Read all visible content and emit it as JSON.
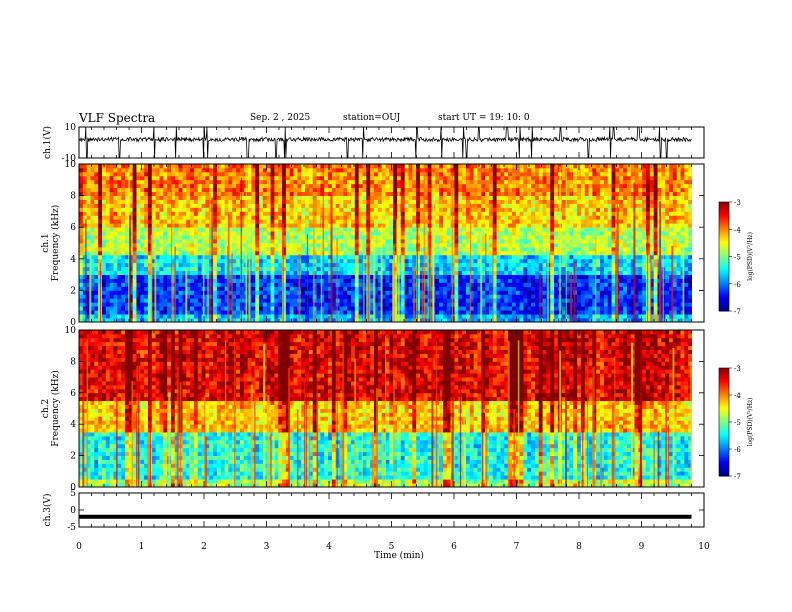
{
  "header": {
    "title": "VLF Spectra",
    "date": "Sep. 2 , 2025",
    "station": "station=OUJ",
    "start": "start UT =  19: 10: 0"
  },
  "chart_data": [
    {
      "type": "line",
      "panel": "ch1-waveform",
      "ylabel": "ch.1(V)",
      "yticks": [
        "10",
        "-10"
      ],
      "ylim": [
        -10,
        10
      ],
      "xlim": [
        0,
        10
      ],
      "description": "noisy waveform centered near 2 V with spikes",
      "baseline": 2,
      "spike_times": [
        0.12,
        0.65,
        1.2,
        1.55,
        2.0,
        2.05,
        2.7,
        3.15,
        3.3,
        4.3,
        4.55,
        5.4,
        5.8,
        6.15,
        6.2,
        6.4,
        6.85,
        7.05,
        7.25,
        7.7,
        8.15,
        8.5,
        8.55,
        8.95,
        9.3,
        9.4
      ]
    },
    {
      "type": "heatmap",
      "panel": "ch1-spectrogram",
      "ylabel_line1": "ch.1",
      "ylabel_line2": "Frequency (kHz)",
      "yticks": [
        "0",
        "2",
        "4",
        "6",
        "8",
        "10"
      ],
      "ylim": [
        0,
        10
      ],
      "xlim": [
        0,
        10
      ],
      "colorbar_label": "log(PSD)(V²/Hz)",
      "colorbar_ticks": [
        "-3",
        "-4",
        "-5",
        "-6",
        "-7"
      ],
      "colorbar_range": [
        -7,
        -3
      ],
      "level_by_band_kHz": [
        [
          0,
          0.5,
          -5.8
        ],
        [
          0.5,
          3.0,
          -6.3
        ],
        [
          3.0,
          4.2,
          -5.6
        ],
        [
          4.2,
          6.0,
          -4.8
        ],
        [
          6.0,
          8.0,
          -4.3
        ],
        [
          8.0,
          10.0,
          -4.0
        ]
      ]
    },
    {
      "type": "heatmap",
      "panel": "ch2-spectrogram",
      "ylabel_line1": "ch.2",
      "ylabel_line2": "Frequency (kHz)",
      "yticks": [
        "0",
        "2",
        "4",
        "6",
        "8",
        "10"
      ],
      "ylim": [
        0,
        10
      ],
      "xlim": [
        0,
        10
      ],
      "colorbar_label": "log(PSD)(V²/Hz)",
      "colorbar_ticks": [
        "-3",
        "-4",
        "-5",
        "-6",
        "-7"
      ],
      "colorbar_range": [
        -7,
        -3
      ],
      "level_by_band_kHz": [
        [
          0,
          0.5,
          -4.8
        ],
        [
          0.5,
          3.5,
          -5.4
        ],
        [
          3.5,
          5.5,
          -4.3
        ],
        [
          5.5,
          10.0,
          -3.4
        ]
      ]
    },
    {
      "type": "line",
      "panel": "ch3-waveform",
      "ylabel": "ch.3(V)",
      "yticks": [
        "5",
        "0",
        "-5"
      ],
      "ylim": [
        -5,
        5
      ],
      "xlim": [
        0,
        10
      ],
      "constant_value": -2.0
    }
  ],
  "xaxis": {
    "label": "Time (min)",
    "ticks": [
      "0",
      "1",
      "2",
      "3",
      "4",
      "5",
      "6",
      "7",
      "8",
      "9",
      "10"
    ]
  },
  "colors": {
    "background": "#ffffff",
    "axis": "#000000",
    "signal": "#000000"
  }
}
